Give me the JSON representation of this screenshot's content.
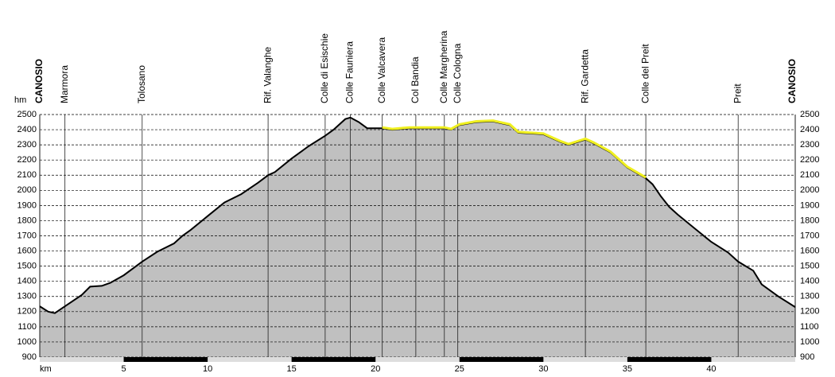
{
  "chart_data": {
    "type": "elevation-profile",
    "x_label": "km",
    "y_label": "hm",
    "xlim": [
      0,
      45
    ],
    "xticks": [
      5,
      10,
      15,
      20,
      25,
      30,
      35,
      40
    ],
    "ylim": [
      900,
      2500
    ],
    "yticks": [
      900,
      1000,
      1100,
      1200,
      1300,
      1400,
      1500,
      1600,
      1700,
      1800,
      1900,
      2000,
      2100,
      2200,
      2300,
      2400,
      2500
    ],
    "grid": true,
    "fill_color": "#c0c0c0",
    "line_color": "#000000",
    "highlight_color": "#f0f020",
    "highlight_range": [
      20.4,
      36.1
    ],
    "x": [
      0,
      0.5,
      0.9,
      1.5,
      2.5,
      3.0,
      3.7,
      4.2,
      5,
      6.1,
      7,
      8,
      8.5,
      9,
      10,
      11,
      12,
      13,
      13.6,
      14,
      15,
      16,
      17,
      17.5,
      18.2,
      18.5,
      19,
      19.5,
      20.4,
      21,
      22,
      23,
      24.1,
      24.5,
      25,
      26,
      27,
      28,
      28.5,
      30,
      31,
      31.5,
      32.5,
      33,
      34,
      35,
      36.1,
      36.5,
      37,
      37.5,
      38,
      39,
      40,
      41,
      41.6,
      42.5,
      43,
      44,
      45
    ],
    "values": [
      1235,
      1200,
      1190,
      1235,
      1310,
      1365,
      1370,
      1390,
      1440,
      1530,
      1595,
      1650,
      1700,
      1740,
      1830,
      1920,
      1975,
      2050,
      2100,
      2120,
      2210,
      2290,
      2360,
      2400,
      2470,
      2480,
      2450,
      2410,
      2410,
      2400,
      2410,
      2410,
      2410,
      2400,
      2430,
      2450,
      2455,
      2430,
      2380,
      2370,
      2320,
      2300,
      2335,
      2310,
      2250,
      2150,
      2080,
      2040,
      1960,
      1890,
      1840,
      1750,
      1660,
      1590,
      1530,
      1470,
      1380,
      1300,
      1230
    ],
    "waypoints": [
      {
        "name": "CANOSIO",
        "km": 0,
        "bold": true
      },
      {
        "name": "Marmora",
        "km": 1.5
      },
      {
        "name": "Tolosano",
        "km": 6.1
      },
      {
        "name": "Rif. Valanghe",
        "km": 13.6
      },
      {
        "name": "Colle di Esischie",
        "km": 17.0
      },
      {
        "name": "Colle Fauniera",
        "km": 18.5
      },
      {
        "name": "Colle Valcavera",
        "km": 20.4
      },
      {
        "name": "Col Bandia",
        "km": 22.4
      },
      {
        "name": "Colle Margherina",
        "km": 24.1
      },
      {
        "name": "Colle Cologna",
        "km": 24.9
      },
      {
        "name": "Rif. Gardetta",
        "km": 32.5
      },
      {
        "name": "Colle del Preit",
        "km": 36.1
      },
      {
        "name": "Preit",
        "km": 41.6
      },
      {
        "name": "CANOSIO",
        "km": 45,
        "bold": true
      }
    ]
  }
}
